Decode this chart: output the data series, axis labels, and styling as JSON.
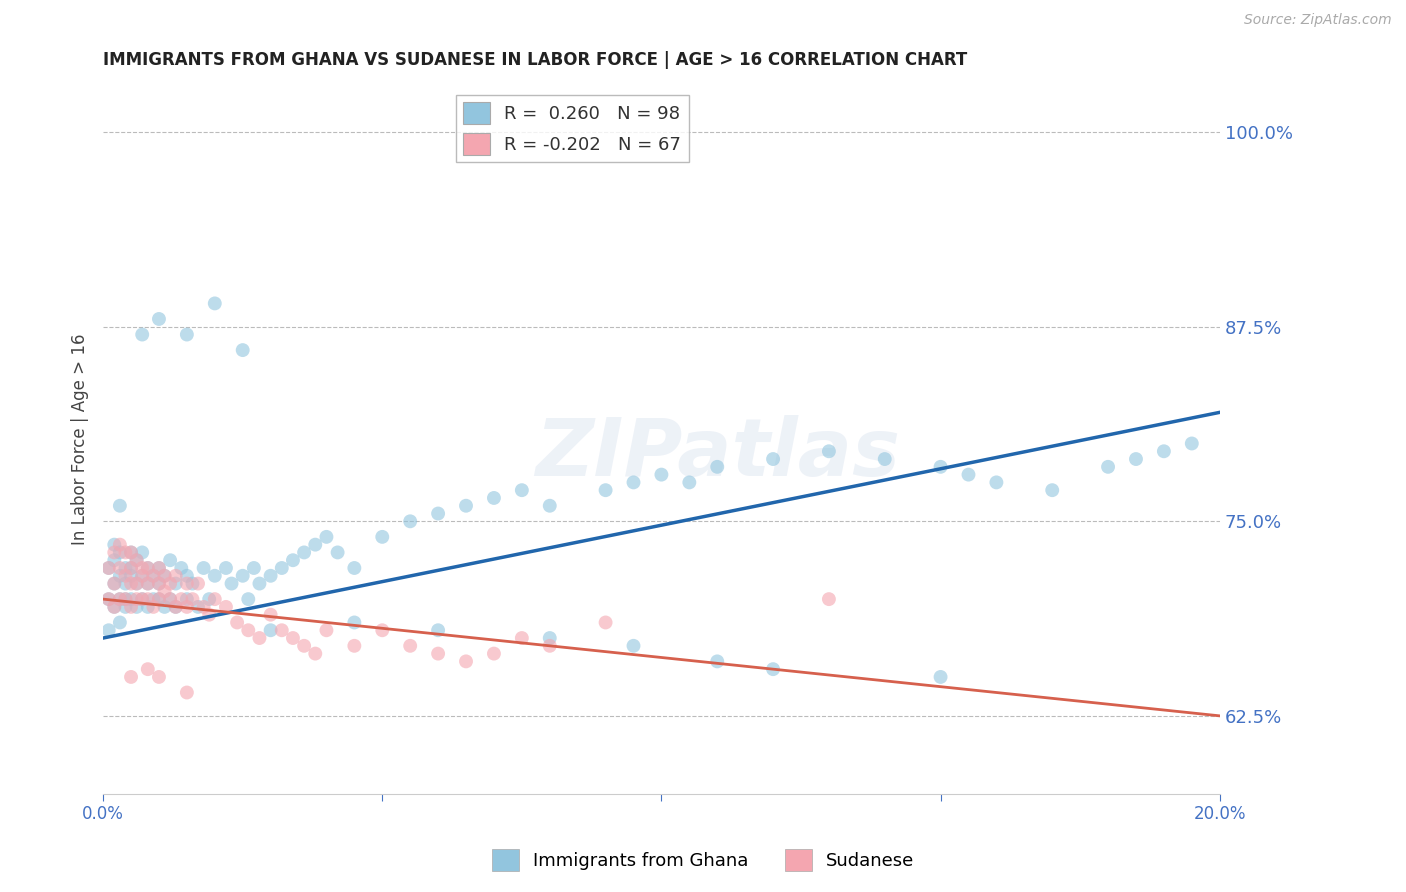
{
  "title": "IMMIGRANTS FROM GHANA VS SUDANESE IN LABOR FORCE | AGE > 16 CORRELATION CHART",
  "source": "Source: ZipAtlas.com",
  "ylabel": "In Labor Force | Age > 16",
  "watermark": "ZIPatlas",
  "xlim": [
    0.0,
    0.2
  ],
  "ylim": [
    0.575,
    1.03
  ],
  "xticks": [
    0.0,
    0.05,
    0.1,
    0.15,
    0.2
  ],
  "xtick_labels": [
    "0.0%",
    "",
    "",
    "",
    "20.0%"
  ],
  "yticks_right": [
    0.625,
    0.75,
    0.875,
    1.0
  ],
  "ytick_labels_right": [
    "62.5%",
    "75.0%",
    "87.5%",
    "100.0%"
  ],
  "legend1_r": "0.260",
  "legend1_n": "98",
  "legend2_r": "-0.202",
  "legend2_n": "67",
  "ghana_color": "#92c5de",
  "sudanese_color": "#f4a6b0",
  "ghana_line_color": "#2166ac",
  "sudanese_line_color": "#d6604d",
  "ghana_alpha": 0.6,
  "sudanese_alpha": 0.6,
  "background_color": "#ffffff",
  "grid_color": "#bbbbbb",
  "axis_color": "#4472c4",
  "ghana_scatter_x": [
    0.001,
    0.001,
    0.001,
    0.002,
    0.002,
    0.002,
    0.002,
    0.003,
    0.003,
    0.003,
    0.003,
    0.003,
    0.004,
    0.004,
    0.004,
    0.004,
    0.005,
    0.005,
    0.005,
    0.005,
    0.006,
    0.006,
    0.006,
    0.007,
    0.007,
    0.007,
    0.008,
    0.008,
    0.008,
    0.009,
    0.009,
    0.01,
    0.01,
    0.01,
    0.011,
    0.011,
    0.012,
    0.012,
    0.013,
    0.013,
    0.014,
    0.015,
    0.015,
    0.016,
    0.017,
    0.018,
    0.019,
    0.02,
    0.022,
    0.023,
    0.025,
    0.026,
    0.027,
    0.028,
    0.03,
    0.032,
    0.034,
    0.036,
    0.038,
    0.04,
    0.042,
    0.045,
    0.05,
    0.055,
    0.06,
    0.065,
    0.07,
    0.075,
    0.08,
    0.09,
    0.095,
    0.1,
    0.105,
    0.11,
    0.12,
    0.13,
    0.14,
    0.15,
    0.155,
    0.16,
    0.17,
    0.18,
    0.185,
    0.19,
    0.195,
    0.03,
    0.045,
    0.06,
    0.08,
    0.095,
    0.11,
    0.12,
    0.15,
    0.007,
    0.01,
    0.015,
    0.02,
    0.025
  ],
  "ghana_scatter_y": [
    0.7,
    0.72,
    0.68,
    0.71,
    0.695,
    0.725,
    0.735,
    0.7,
    0.715,
    0.73,
    0.685,
    0.76,
    0.7,
    0.72,
    0.695,
    0.71,
    0.715,
    0.73,
    0.7,
    0.72,
    0.695,
    0.71,
    0.725,
    0.7,
    0.715,
    0.73,
    0.695,
    0.71,
    0.72,
    0.7,
    0.715,
    0.7,
    0.72,
    0.71,
    0.695,
    0.715,
    0.7,
    0.725,
    0.71,
    0.695,
    0.72,
    0.7,
    0.715,
    0.71,
    0.695,
    0.72,
    0.7,
    0.715,
    0.72,
    0.71,
    0.715,
    0.7,
    0.72,
    0.71,
    0.715,
    0.72,
    0.725,
    0.73,
    0.735,
    0.74,
    0.73,
    0.72,
    0.74,
    0.75,
    0.755,
    0.76,
    0.765,
    0.77,
    0.76,
    0.77,
    0.775,
    0.78,
    0.775,
    0.785,
    0.79,
    0.795,
    0.79,
    0.785,
    0.78,
    0.775,
    0.77,
    0.785,
    0.79,
    0.795,
    0.8,
    0.68,
    0.685,
    0.68,
    0.675,
    0.67,
    0.66,
    0.655,
    0.65,
    0.87,
    0.88,
    0.87,
    0.89,
    0.86
  ],
  "sudanese_scatter_x": [
    0.001,
    0.001,
    0.002,
    0.002,
    0.002,
    0.003,
    0.003,
    0.003,
    0.004,
    0.004,
    0.004,
    0.005,
    0.005,
    0.005,
    0.005,
    0.006,
    0.006,
    0.006,
    0.007,
    0.007,
    0.007,
    0.008,
    0.008,
    0.008,
    0.009,
    0.009,
    0.01,
    0.01,
    0.01,
    0.011,
    0.011,
    0.012,
    0.012,
    0.013,
    0.013,
    0.014,
    0.015,
    0.015,
    0.016,
    0.017,
    0.018,
    0.019,
    0.02,
    0.022,
    0.024,
    0.026,
    0.028,
    0.03,
    0.032,
    0.034,
    0.036,
    0.038,
    0.04,
    0.045,
    0.05,
    0.055,
    0.06,
    0.065,
    0.07,
    0.075,
    0.08,
    0.09,
    0.13,
    0.005,
    0.008,
    0.01,
    0.015
  ],
  "sudanese_scatter_y": [
    0.72,
    0.7,
    0.73,
    0.71,
    0.695,
    0.72,
    0.735,
    0.7,
    0.715,
    0.73,
    0.7,
    0.72,
    0.71,
    0.73,
    0.695,
    0.71,
    0.725,
    0.7,
    0.715,
    0.7,
    0.72,
    0.71,
    0.7,
    0.72,
    0.715,
    0.695,
    0.71,
    0.7,
    0.72,
    0.705,
    0.715,
    0.7,
    0.71,
    0.695,
    0.715,
    0.7,
    0.71,
    0.695,
    0.7,
    0.71,
    0.695,
    0.69,
    0.7,
    0.695,
    0.685,
    0.68,
    0.675,
    0.69,
    0.68,
    0.675,
    0.67,
    0.665,
    0.68,
    0.67,
    0.68,
    0.67,
    0.665,
    0.66,
    0.665,
    0.675,
    0.67,
    0.685,
    0.7,
    0.65,
    0.655,
    0.65,
    0.64
  ],
  "ghana_trend_x": [
    0.0,
    0.2
  ],
  "ghana_trend_y": [
    0.675,
    0.82
  ],
  "sudanese_trend_x": [
    0.0,
    0.2
  ],
  "sudanese_trend_y": [
    0.7,
    0.625
  ],
  "title_color": "#222222",
  "right_axis_color": "#4472c4",
  "dot_size": 100
}
